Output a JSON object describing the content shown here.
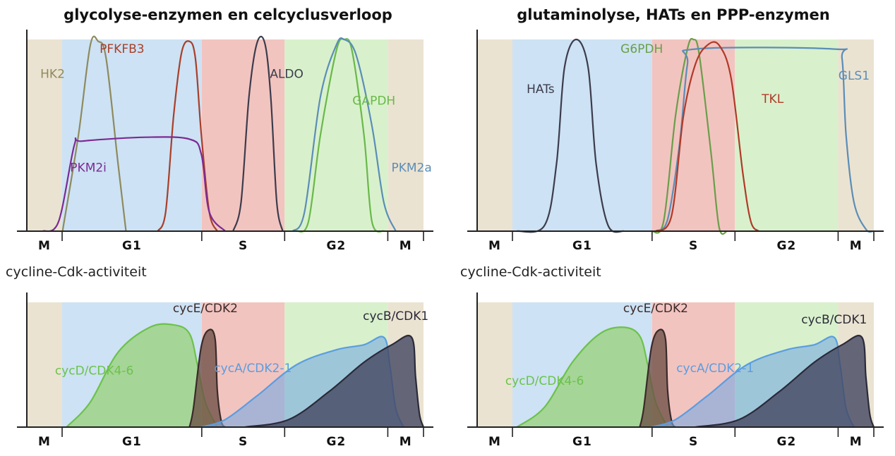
{
  "left": {
    "title": "glycolyse-enzymen en celcyclusverloop",
    "section_label": "cycline-Cdk-activiteit"
  },
  "right": {
    "title": "glutaminolyse, HATs en PPP-enzymen",
    "section_label": "cycline-Cdk-activiteit"
  },
  "colors": {
    "M": "#ebe3d1",
    "G1": "#cde2f4",
    "S": "#f2c4c0",
    "G2": "#d8f1cc"
  },
  "panels": [
    {
      "id": "top-left",
      "phases": [
        {
          "label": "M",
          "key": "M",
          "start": 0,
          "end": 0.089
        },
        {
          "label": "G1",
          "key": "G1",
          "start": 0.089,
          "end": 0.441
        },
        {
          "label": "S",
          "key": "S",
          "start": 0.441,
          "end": 0.65
        },
        {
          "label": "G2",
          "key": "G2",
          "start": 0.65,
          "end": 0.91
        },
        {
          "label": "M",
          "key": "M",
          "start": 0.91,
          "end": 1.0
        }
      ],
      "curves": [
        {
          "name": "HK2",
          "color": "#8e8a5e",
          "fill": false,
          "label_pos": [
            0.065,
            0.8
          ],
          "points": [
            [
              0.09,
              0
            ],
            [
              0.13,
              0.5
            ],
            [
              0.16,
              0.97
            ],
            [
              0.18,
              0.99
            ],
            [
              0.2,
              0.9
            ],
            [
              0.23,
              0.35
            ],
            [
              0.25,
              0.0
            ]
          ]
        },
        {
          "name": "PFKFB3",
          "color": "#a83f2a",
          "fill": false,
          "label_pos": [
            0.24,
            0.93
          ],
          "points": [
            [
              0.33,
              0
            ],
            [
              0.35,
              0.1
            ],
            [
              0.37,
              0.6
            ],
            [
              0.39,
              0.93
            ],
            [
              0.41,
              0.99
            ],
            [
              0.425,
              0.9
            ],
            [
              0.44,
              0.5
            ],
            [
              0.46,
              0.1
            ],
            [
              0.48,
              0.0
            ]
          ]
        },
        {
          "name": "PKM2i",
          "color": "#7c2a94",
          "fill": false,
          "label_pos": [
            0.155,
            0.31
          ],
          "points": [
            [
              0.04,
              0
            ],
            [
              0.08,
              0.05
            ],
            [
              0.12,
              0.45
            ],
            [
              0.14,
              0.47
            ],
            [
              0.3,
              0.49
            ],
            [
              0.41,
              0.48
            ],
            [
              0.44,
              0.4
            ],
            [
              0.46,
              0.1
            ],
            [
              0.5,
              0.0
            ]
          ]
        },
        {
          "name": "ALDO",
          "color": "#3c3c4c",
          "fill": false,
          "label_pos": [
            0.655,
            0.8
          ],
          "points": [
            [
              0.52,
              0
            ],
            [
              0.54,
              0.15
            ],
            [
              0.56,
              0.7
            ],
            [
              0.58,
              0.98
            ],
            [
              0.6,
              0.98
            ],
            [
              0.615,
              0.7
            ],
            [
              0.63,
              0.15
            ],
            [
              0.645,
              0
            ]
          ]
        },
        {
          "name": "GAPDH",
          "color": "#6ab84a",
          "fill": false,
          "label_pos": [
            0.875,
            0.66
          ],
          "points": [
            [
              0.68,
              0
            ],
            [
              0.71,
              0.05
            ],
            [
              0.74,
              0.5
            ],
            [
              0.78,
              0.94
            ],
            [
              0.8,
              1.0
            ],
            [
              0.82,
              0.94
            ],
            [
              0.85,
              0.5
            ],
            [
              0.87,
              0.05
            ],
            [
              0.9,
              0.0
            ]
          ]
        },
        {
          "name": "PKM2a",
          "color": "#5b8db7",
          "fill": false,
          "label_pos": [
            0.97,
            0.31
          ],
          "points": [
            [
              0.67,
              0
            ],
            [
              0.7,
              0.1
            ],
            [
              0.74,
              0.7
            ],
            [
              0.78,
              0.97
            ],
            [
              0.8,
              1.0
            ],
            [
              0.83,
              0.92
            ],
            [
              0.87,
              0.55
            ],
            [
              0.9,
              0.15
            ],
            [
              0.93,
              0.0
            ]
          ]
        }
      ]
    },
    {
      "id": "top-right",
      "phases": [
        {
          "label": "M",
          "key": "M",
          "start": 0,
          "end": 0.089
        },
        {
          "label": "G1",
          "key": "G1",
          "start": 0.089,
          "end": 0.441
        },
        {
          "label": "S",
          "key": "S",
          "start": 0.441,
          "end": 0.65
        },
        {
          "label": "G2",
          "key": "G2",
          "start": 0.65,
          "end": 0.91
        },
        {
          "label": "M",
          "key": "M",
          "start": 0.91,
          "end": 1.0
        }
      ],
      "curves": [
        {
          "name": "HATs",
          "color": "#3c3c4c",
          "fill": false,
          "label_pos": [
            0.16,
            0.72
          ],
          "points": [
            [
              0.1,
              0
            ],
            [
              0.17,
              0.03
            ],
            [
              0.2,
              0.35
            ],
            [
              0.22,
              0.85
            ],
            [
              0.25,
              1.0
            ],
            [
              0.28,
              0.85
            ],
            [
              0.3,
              0.35
            ],
            [
              0.33,
              0.03
            ],
            [
              0.37,
              0.0
            ]
          ]
        },
        {
          "name": "G6PDH",
          "color": "#6a9e4a",
          "fill": false,
          "label_pos": [
            0.415,
            0.93
          ],
          "points": [
            [
              0.44,
              0
            ],
            [
              0.47,
              0.05
            ],
            [
              0.5,
              0.6
            ],
            [
              0.53,
              0.95
            ],
            [
              0.545,
              1.0
            ],
            [
              0.56,
              0.92
            ],
            [
              0.59,
              0.4
            ],
            [
              0.61,
              0.02
            ],
            [
              0.63,
              0.0
            ]
          ]
        },
        {
          "name": "GLS1",
          "color": "#5b8db7",
          "fill": false,
          "label_pos": [
            0.95,
            0.79
          ],
          "points": [
            [
              0.45,
              0
            ],
            [
              0.48,
              0.06
            ],
            [
              0.51,
              0.45
            ],
            [
              0.53,
              0.87
            ],
            [
              0.55,
              0.95
            ],
            [
              0.9,
              0.95
            ],
            [
              0.92,
              0.9
            ],
            [
              0.93,
              0.5
            ],
            [
              0.95,
              0.15
            ],
            [
              0.98,
              0.01
            ],
            [
              1.0,
              0.0
            ]
          ]
        },
        {
          "name": "TKL",
          "color": "#b03a28",
          "fill": false,
          "label_pos": [
            0.745,
            0.67
          ],
          "points": [
            [
              0.45,
              0
            ],
            [
              0.49,
              0.08
            ],
            [
              0.52,
              0.6
            ],
            [
              0.55,
              0.87
            ],
            [
              0.58,
              0.97
            ],
            [
              0.61,
              0.97
            ],
            [
              0.64,
              0.8
            ],
            [
              0.67,
              0.3
            ],
            [
              0.69,
              0.05
            ],
            [
              0.71,
              0.0
            ]
          ]
        }
      ]
    },
    {
      "id": "bottom-left",
      "phases": [
        {
          "label": "M",
          "key": "M",
          "start": 0,
          "end": 0.089
        },
        {
          "label": "G1",
          "key": "G1",
          "start": 0.089,
          "end": 0.441
        },
        {
          "label": "S",
          "key": "S",
          "start": 0.441,
          "end": 0.65
        },
        {
          "label": "G2",
          "key": "G2",
          "start": 0.65,
          "end": 0.91
        },
        {
          "label": "M",
          "key": "M",
          "start": 0.91,
          "end": 1.0
        }
      ],
      "curves": [
        {
          "name": "cycD/CDK4-6",
          "color": "#6cc24a",
          "fill": true,
          "fill_color": "rgba(140,205,90,0.6)",
          "label_pos": [
            0.17,
            0.42
          ],
          "points": [
            [
              0.1,
              0
            ],
            [
              0.16,
              0.2
            ],
            [
              0.23,
              0.6
            ],
            [
              0.31,
              0.8
            ],
            [
              0.37,
              0.82
            ],
            [
              0.41,
              0.75
            ],
            [
              0.43,
              0.5
            ],
            [
              0.45,
              0.2
            ],
            [
              0.48,
              0.0
            ]
          ]
        },
        {
          "name": "cycE/CDK2",
          "color": "#3a2a2a",
          "fill": true,
          "fill_color": "rgba(110,80,70,0.78)",
          "label_pos": [
            0.45,
            0.92
          ],
          "points": [
            [
              0.41,
              0
            ],
            [
              0.42,
              0.15
            ],
            [
              0.44,
              0.65
            ],
            [
              0.46,
              0.78
            ],
            [
              0.475,
              0.7
            ],
            [
              0.48,
              0.3
            ],
            [
              0.49,
              0.05
            ],
            [
              0.5,
              0.0
            ]
          ]
        },
        {
          "name": "cycA/CDK2-1",
          "color": "#5a9de0",
          "fill": true,
          "fill_color": "rgba(120,170,225,0.6)",
          "label_pos": [
            0.57,
            0.44
          ],
          "points": [
            [
              0.44,
              0
            ],
            [
              0.5,
              0.06
            ],
            [
              0.58,
              0.25
            ],
            [
              0.68,
              0.5
            ],
            [
              0.78,
              0.62
            ],
            [
              0.85,
              0.66
            ],
            [
              0.9,
              0.72
            ],
            [
              0.915,
              0.5
            ],
            [
              0.93,
              0.15
            ],
            [
              0.95,
              0.0
            ]
          ]
        },
        {
          "name": "cycB/CDK1",
          "color": "#2a2a3a",
          "fill": true,
          "fill_color": "rgba(70,75,100,0.82)",
          "label_pos": [
            0.93,
            0.86
          ],
          "points": [
            [
              0.55,
              0
            ],
            [
              0.66,
              0.06
            ],
            [
              0.76,
              0.28
            ],
            [
              0.85,
              0.52
            ],
            [
              0.92,
              0.66
            ],
            [
              0.97,
              0.72
            ],
            [
              0.98,
              0.4
            ],
            [
              0.99,
              0.1
            ],
            [
              1.0,
              0.0
            ]
          ]
        }
      ]
    },
    {
      "id": "bottom-right",
      "phases": [
        {
          "label": "M",
          "key": "M",
          "start": 0,
          "end": 0.089
        },
        {
          "label": "G1",
          "key": "G1",
          "start": 0.089,
          "end": 0.441
        },
        {
          "label": "S",
          "key": "S",
          "start": 0.441,
          "end": 0.65
        },
        {
          "label": "G2",
          "key": "G2",
          "start": 0.65,
          "end": 0.91
        },
        {
          "label": "M",
          "key": "M",
          "start": 0.91,
          "end": 1.0
        }
      ],
      "curves": [
        {
          "name": "cycD/CDK4-6",
          "color": "#6cc24a",
          "fill": true,
          "fill_color": "rgba(140,205,90,0.6)",
          "label_pos": [
            0.17,
            0.34
          ],
          "points": [
            [
              0.1,
              0
            ],
            [
              0.17,
              0.16
            ],
            [
              0.24,
              0.52
            ],
            [
              0.31,
              0.75
            ],
            [
              0.37,
              0.8
            ],
            [
              0.41,
              0.73
            ],
            [
              0.43,
              0.5
            ],
            [
              0.45,
              0.2
            ],
            [
              0.48,
              0.0
            ]
          ]
        },
        {
          "name": "cycE/CDK2",
          "color": "#3a2a2a",
          "fill": true,
          "fill_color": "rgba(110,80,70,0.78)",
          "label_pos": [
            0.45,
            0.92
          ],
          "points": [
            [
              0.41,
              0
            ],
            [
              0.42,
              0.15
            ],
            [
              0.44,
              0.65
            ],
            [
              0.46,
              0.78
            ],
            [
              0.475,
              0.7
            ],
            [
              0.48,
              0.3
            ],
            [
              0.49,
              0.05
            ],
            [
              0.5,
              0.0
            ]
          ]
        },
        {
          "name": "cycA/CDK2-1",
          "color": "#5a9de0",
          "fill": true,
          "fill_color": "rgba(120,170,225,0.6)",
          "label_pos": [
            0.6,
            0.44
          ],
          "points": [
            [
              0.44,
              0
            ],
            [
              0.5,
              0.06
            ],
            [
              0.58,
              0.25
            ],
            [
              0.68,
              0.5
            ],
            [
              0.78,
              0.62
            ],
            [
              0.85,
              0.66
            ],
            [
              0.9,
              0.72
            ],
            [
              0.915,
              0.5
            ],
            [
              0.93,
              0.15
            ],
            [
              0.95,
              0.0
            ]
          ]
        },
        {
          "name": "cycB/CDK1",
          "color": "#2a2a3a",
          "fill": true,
          "fill_color": "rgba(70,75,100,0.82)",
          "label_pos": [
            0.9,
            0.83
          ],
          "points": [
            [
              0.55,
              0
            ],
            [
              0.66,
              0.06
            ],
            [
              0.76,
              0.28
            ],
            [
              0.85,
              0.52
            ],
            [
              0.92,
              0.66
            ],
            [
              0.97,
              0.72
            ],
            [
              0.98,
              0.4
            ],
            [
              0.99,
              0.1
            ],
            [
              1.0,
              0.0
            ]
          ]
        }
      ]
    }
  ]
}
